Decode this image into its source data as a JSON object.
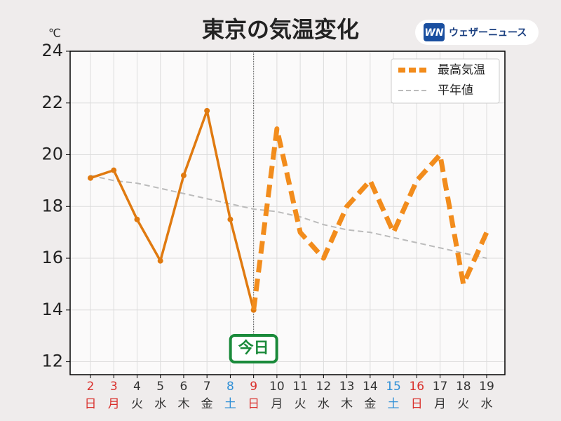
{
  "logo": {
    "mark": "WN",
    "text": "ウェザーニュース"
  },
  "chart_data": {
    "type": "line",
    "title": "東京の気温変化",
    "y_unit": "℃",
    "categories": [
      "2",
      "3",
      "4",
      "5",
      "6",
      "7",
      "8",
      "9",
      "10",
      "11",
      "12",
      "13",
      "14",
      "15",
      "16",
      "17",
      "18",
      "19"
    ],
    "weekdays": [
      "日",
      "月",
      "火",
      "水",
      "木",
      "金",
      "土",
      "日",
      "月",
      "火",
      "水",
      "木",
      "金",
      "土",
      "日",
      "月",
      "火",
      "水"
    ],
    "category_colors": [
      "#d9302c",
      "#d9302c",
      "#333333",
      "#333333",
      "#333333",
      "#333333",
      "#2f8fd6",
      "#d9302c",
      "#333333",
      "#333333",
      "#333333",
      "#333333",
      "#333333",
      "#2f8fd6",
      "#d9302c",
      "#333333",
      "#333333",
      "#333333"
    ],
    "series": [
      {
        "name": "最高気温",
        "color": "#f28c1c",
        "observed_color": "#e07a10",
        "values": [
          19.1,
          19.4,
          17.5,
          15.9,
          19.2,
          21.7,
          17.5,
          14.0,
          21.0,
          17.0,
          16.0,
          18.0,
          19.0,
          17.0,
          19.0,
          20.0,
          15.0,
          17.0
        ]
      },
      {
        "name": "平年値",
        "color": "#bbbbbb",
        "values": [
          19.2,
          19.0,
          18.9,
          18.7,
          18.5,
          18.3,
          18.1,
          17.9,
          17.8,
          17.6,
          17.3,
          17.1,
          17.0,
          16.8,
          16.6,
          16.4,
          16.2,
          16.0
        ]
      }
    ],
    "today": {
      "label": "今日",
      "category_index": 7
    },
    "ylim": [
      11.5,
      24
    ],
    "yticks": [
      12,
      14,
      16,
      18,
      20,
      22,
      24
    ],
    "grid": true,
    "legend": "upper right"
  }
}
